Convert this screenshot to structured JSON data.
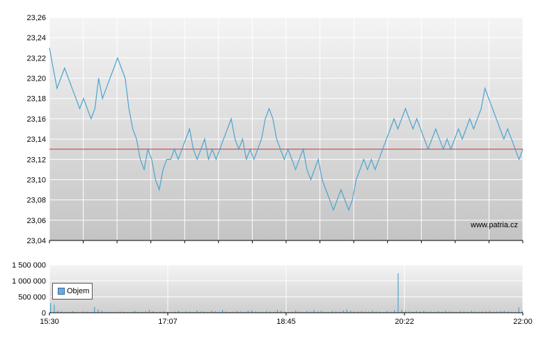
{
  "watermark": "www.patria.cz",
  "colors": {
    "line": "#4aa3cf",
    "reference": "#cc3333",
    "volume": "#4aa3cf",
    "grid": "#ffffff",
    "axis": "#000000"
  },
  "chart_data": [
    {
      "type": "line",
      "title": "",
      "xlabel": "",
      "ylabel": "",
      "ylim": [
        23.04,
        23.26
      ],
      "yticks": [
        "23,26",
        "23,24",
        "23,22",
        "23,20",
        "23,18",
        "23,16",
        "23,14",
        "23,12",
        "23,10",
        "23,08",
        "23,06",
        "23,04"
      ],
      "reference_line": 23.13,
      "grid": true,
      "x_range": [
        "15:30",
        "22:00"
      ],
      "series": [
        {
          "values": [
            23.23,
            23.21,
            23.19,
            23.2,
            23.21,
            23.2,
            23.19,
            23.18,
            23.17,
            23.18,
            23.17,
            23.16,
            23.17,
            23.2,
            23.18,
            23.19,
            23.2,
            23.21,
            23.22,
            23.21,
            23.2,
            23.17,
            23.15,
            23.14,
            23.12,
            23.11,
            23.13,
            23.12,
            23.1,
            23.09,
            23.11,
            23.12,
            23.12,
            23.13,
            23.12,
            23.13,
            23.14,
            23.15,
            23.13,
            23.12,
            23.13,
            23.14,
            23.12,
            23.13,
            23.12,
            23.13,
            23.14,
            23.15,
            23.16,
            23.14,
            23.13,
            23.14,
            23.12,
            23.13,
            23.12,
            23.13,
            23.14,
            23.16,
            23.17,
            23.16,
            23.14,
            23.13,
            23.12,
            23.13,
            23.12,
            23.11,
            23.12,
            23.13,
            23.11,
            23.1,
            23.11,
            23.12,
            23.1,
            23.09,
            23.08,
            23.07,
            23.08,
            23.09,
            23.08,
            23.07,
            23.08,
            23.1,
            23.11,
            23.12,
            23.11,
            23.12,
            23.11,
            23.12,
            23.13,
            23.14,
            23.15,
            23.16,
            23.15,
            23.16,
            23.17,
            23.16,
            23.15,
            23.16,
            23.15,
            23.14,
            23.13,
            23.14,
            23.15,
            23.14,
            23.13,
            23.14,
            23.13,
            23.14,
            23.15,
            23.14,
            23.15,
            23.16,
            23.15,
            23.16,
            23.17,
            23.19,
            23.18,
            23.17,
            23.16,
            23.15,
            23.14,
            23.15,
            23.14,
            23.13,
            23.12,
            23.13
          ]
        }
      ]
    },
    {
      "type": "bar",
      "title": "",
      "ylim": [
        0,
        1500000
      ],
      "yticks": [
        "1 500 000",
        "1 000 000",
        "500 000",
        "0"
      ],
      "xticks": [
        "15:30",
        "17:07",
        "18:45",
        "20:22",
        "22:00"
      ],
      "legend": {
        "position": "top-left",
        "entries": [
          "Objem"
        ]
      },
      "grid": true,
      "values": [
        300000,
        250000,
        60000,
        40000,
        20000,
        30000,
        50000,
        20000,
        10000,
        40000,
        30000,
        20000,
        180000,
        100000,
        60000,
        20000,
        30000,
        10000,
        20000,
        40000,
        30000,
        20000,
        15000,
        60000,
        30000,
        20000,
        50000,
        90000,
        40000,
        20000,
        30000,
        40000,
        20000,
        15000,
        30000,
        60000,
        20000,
        40000,
        30000,
        20000,
        70000,
        40000,
        30000,
        20000,
        60000,
        50000,
        30000,
        90000,
        40000,
        20000,
        30000,
        50000,
        40000,
        20000,
        60000,
        80000,
        40000,
        30000,
        20000,
        50000,
        40000,
        30000,
        90000,
        60000,
        40000,
        20000,
        30000,
        70000,
        40000,
        20000,
        50000,
        30000,
        80000,
        40000,
        60000,
        30000,
        20000,
        50000,
        40000,
        30000,
        70000,
        100000,
        60000,
        40000,
        30000,
        50000,
        40000,
        30000,
        60000,
        40000,
        30000,
        20000,
        50000,
        40000,
        80000,
        1230000,
        90000,
        60000,
        40000,
        30000,
        50000,
        40000,
        60000,
        30000,
        40000,
        20000,
        50000,
        30000,
        60000,
        40000,
        30000,
        20000,
        50000,
        40000,
        30000,
        60000,
        40000,
        30000,
        50000,
        40000,
        60000,
        30000,
        40000,
        50000,
        60000,
        40000,
        30000,
        20000,
        170000,
        50000
      ]
    }
  ]
}
